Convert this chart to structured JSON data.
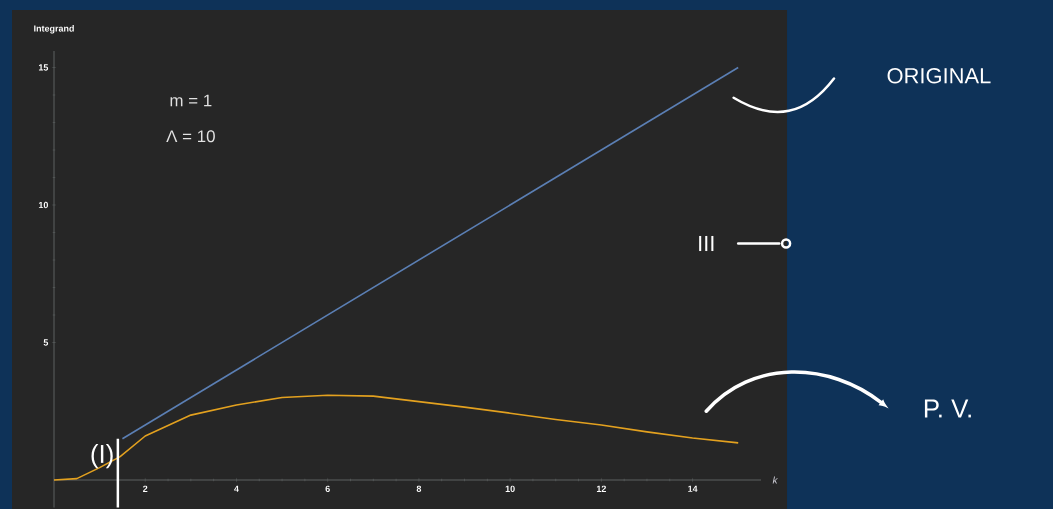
{
  "chart_data": {
    "type": "line",
    "xlabel": "k",
    "ylabel": "Integrand",
    "xlim": [
      0,
      15.5
    ],
    "ylim": [
      -1,
      15.6
    ],
    "xticks": [
      2,
      4,
      6,
      8,
      10,
      12,
      14
    ],
    "yticks": [
      5,
      10,
      15
    ],
    "series": [
      {
        "color": "#5b7fb4",
        "x": [
          1.5,
          15
        ],
        "values": [
          1.5,
          15
        ]
      },
      {
        "color": "#e3a11f",
        "x": [
          0,
          0.5,
          1,
          1.45,
          2,
          3,
          4,
          5,
          6,
          7,
          8,
          9,
          10,
          11,
          12,
          13,
          14,
          15
        ],
        "values": [
          0,
          0.05,
          0.45,
          0.85,
          1.6,
          2.36,
          2.73,
          3.0,
          3.08,
          3.05,
          2.85,
          2.65,
          2.43,
          2.2,
          2.0,
          1.75,
          1.53,
          1.35
        ]
      }
    ],
    "ref_lines": [
      {
        "axis": "x",
        "value": 1.4,
        "label": "(I)",
        "color": "#ffffff"
      }
    ],
    "annotations": [
      "m = 1",
      "Λ = 10",
      "ORIGINAL",
      "III",
      "P. V."
    ]
  }
}
